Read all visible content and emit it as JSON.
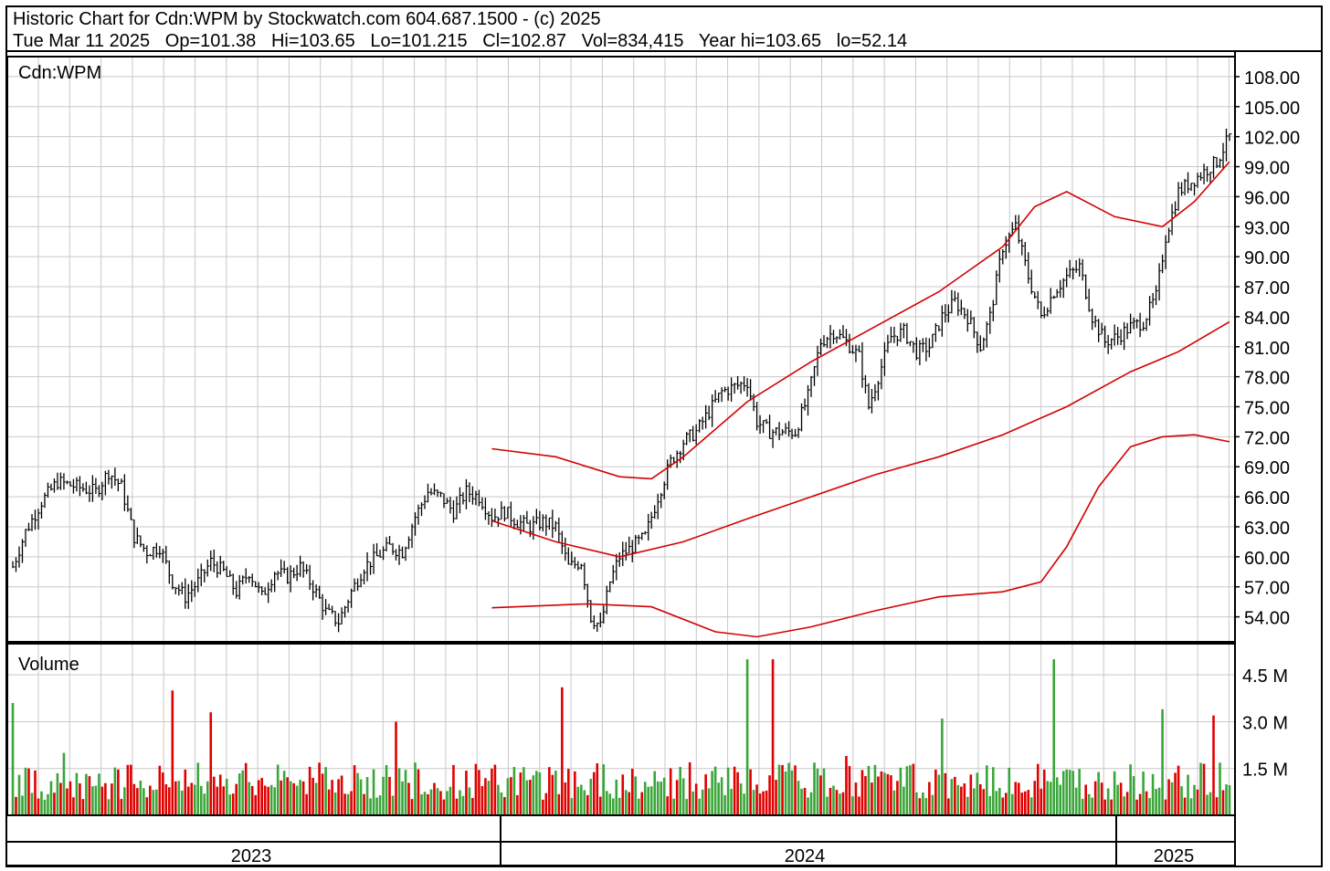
{
  "header": {
    "line1": "Historic Chart for Cdn:WPM by Stockwatch.com 604.687.1500 - (c) 2025",
    "line2": "Tue Mar 11 2025   Op=101.38   Hi=103.65   Lo=101.215   Cl=102.87   Vol=834,415   Year hi=103.65   lo=52.14"
  },
  "chart_data": {
    "type": "line",
    "symbol": "Cdn:WPM",
    "volume_label": "Volume",
    "price_ticks": [
      "108.00",
      "105.00",
      "102.00",
      "99.00",
      "96.00",
      "93.00",
      "90.00",
      "87.00",
      "84.00",
      "81.00",
      "78.00",
      "75.00",
      "72.00",
      "69.00",
      "66.00",
      "63.00",
      "60.00",
      "57.00",
      "54.00"
    ],
    "volume_ticks": [
      "4.5 M",
      "3.0 M",
      "1.5 M"
    ],
    "years": [
      "2023",
      "2024",
      "2025"
    ],
    "ylim": [
      51.5,
      110
    ],
    "volume_ylim": [
      0,
      5.5
    ],
    "colors": {
      "price_bar": "#000000",
      "moving_average": "#d40000",
      "volume_up": "#3aa63a",
      "volume_down": "#e00000",
      "grid": "#c8c8c8"
    },
    "close_series": [
      {
        "t": 0,
        "v": 59.0
      },
      {
        "t": 4,
        "v": 62.5
      },
      {
        "t": 9,
        "v": 65.5
      },
      {
        "t": 14,
        "v": 67.5
      },
      {
        "t": 20,
        "v": 67.0
      },
      {
        "t": 26,
        "v": 66.5
      },
      {
        "t": 30,
        "v": 68.5
      },
      {
        "t": 34,
        "v": 67.0
      },
      {
        "t": 38,
        "v": 62.0
      },
      {
        "t": 42,
        "v": 60.5
      },
      {
        "t": 46,
        "v": 61.0
      },
      {
        "t": 50,
        "v": 57.5
      },
      {
        "t": 54,
        "v": 56.0
      },
      {
        "t": 58,
        "v": 57.5
      },
      {
        "t": 62,
        "v": 59.5
      },
      {
        "t": 66,
        "v": 58.5
      },
      {
        "t": 70,
        "v": 56.5
      },
      {
        "t": 74,
        "v": 58.5
      },
      {
        "t": 78,
        "v": 56.0
      },
      {
        "t": 82,
        "v": 58.5
      },
      {
        "t": 86,
        "v": 58.0
      },
      {
        "t": 90,
        "v": 59.0
      },
      {
        "t": 94,
        "v": 57.0
      },
      {
        "t": 98,
        "v": 54.5
      },
      {
        "t": 102,
        "v": 53.5
      },
      {
        "t": 106,
        "v": 56.5
      },
      {
        "t": 110,
        "v": 59.0
      },
      {
        "t": 114,
        "v": 60.0
      },
      {
        "t": 118,
        "v": 61.0
      },
      {
        "t": 122,
        "v": 60.5
      },
      {
        "t": 126,
        "v": 64.0
      },
      {
        "t": 130,
        "v": 66.5
      },
      {
        "t": 134,
        "v": 66.0
      },
      {
        "t": 138,
        "v": 64.5
      },
      {
        "t": 142,
        "v": 66.5
      },
      {
        "t": 146,
        "v": 66.0
      },
      {
        "t": 150,
        "v": 64.0
      },
      {
        "t": 154,
        "v": 64.5
      },
      {
        "t": 158,
        "v": 63.5
      },
      {
        "t": 162,
        "v": 63.0
      },
      {
        "t": 166,
        "v": 63.5
      },
      {
        "t": 170,
        "v": 63.0
      },
      {
        "t": 174,
        "v": 59.0
      },
      {
        "t": 178,
        "v": 59.5
      },
      {
        "t": 181,
        "v": 54.0
      },
      {
        "t": 184,
        "v": 53.0
      },
      {
        "t": 187,
        "v": 57.5
      },
      {
        "t": 190,
        "v": 60.0
      },
      {
        "t": 194,
        "v": 61.0
      },
      {
        "t": 198,
        "v": 62.0
      },
      {
        "t": 202,
        "v": 66.0
      },
      {
        "t": 206,
        "v": 69.5
      },
      {
        "t": 210,
        "v": 71.5
      },
      {
        "t": 214,
        "v": 72.5
      },
      {
        "t": 218,
        "v": 74.5
      },
      {
        "t": 222,
        "v": 76.5
      },
      {
        "t": 226,
        "v": 77.0
      },
      {
        "t": 230,
        "v": 77.5
      },
      {
        "t": 233,
        "v": 73.5
      },
      {
        "t": 237,
        "v": 72.5
      },
      {
        "t": 241,
        "v": 72.5
      },
      {
        "t": 245,
        "v": 72.5
      },
      {
        "t": 249,
        "v": 76.0
      },
      {
        "t": 253,
        "v": 81.5
      },
      {
        "t": 257,
        "v": 82.5
      },
      {
        "t": 261,
        "v": 81.5
      },
      {
        "t": 265,
        "v": 80.0
      },
      {
        "t": 268,
        "v": 75.0
      },
      {
        "t": 271,
        "v": 78.0
      },
      {
        "t": 275,
        "v": 82.0
      },
      {
        "t": 279,
        "v": 82.5
      },
      {
        "t": 283,
        "v": 80.5
      },
      {
        "t": 287,
        "v": 81.0
      },
      {
        "t": 291,
        "v": 84.0
      },
      {
        "t": 295,
        "v": 85.5
      },
      {
        "t": 299,
        "v": 84.0
      },
      {
        "t": 303,
        "v": 81.0
      },
      {
        "t": 306,
        "v": 84.0
      },
      {
        "t": 310,
        "v": 91.0
      },
      {
        "t": 314,
        "v": 93.0
      },
      {
        "t": 318,
        "v": 88.0
      },
      {
        "t": 322,
        "v": 84.0
      },
      {
        "t": 326,
        "v": 86.5
      },
      {
        "t": 330,
        "v": 88.0
      },
      {
        "t": 334,
        "v": 89.0
      },
      {
        "t": 338,
        "v": 84.0
      },
      {
        "t": 342,
        "v": 81.5
      },
      {
        "t": 346,
        "v": 82.0
      },
      {
        "t": 350,
        "v": 83.0
      },
      {
        "t": 354,
        "v": 83.5
      },
      {
        "t": 358,
        "v": 86.0
      },
      {
        "t": 361,
        "v": 92.0
      },
      {
        "t": 365,
        "v": 96.5
      },
      {
        "t": 369,
        "v": 97.5
      },
      {
        "t": 373,
        "v": 98.5
      },
      {
        "t": 377,
        "v": 99.5
      },
      {
        "t": 381,
        "v": 102.0
      }
    ],
    "moving_averages": [
      {
        "name": "",
        "points": [
          {
            "t": 150,
            "v": 63.6
          },
          {
            "t": 170,
            "v": 61.5
          },
          {
            "t": 190,
            "v": 60.0
          },
          {
            "t": 210,
            "v": 61.5
          },
          {
            "t": 230,
            "v": 63.8
          },
          {
            "t": 250,
            "v": 66.0
          },
          {
            "t": 270,
            "v": 68.2
          },
          {
            "t": 290,
            "v": 70.0
          },
          {
            "t": 310,
            "v": 72.2
          },
          {
            "t": 330,
            "v": 75.0
          },
          {
            "t": 350,
            "v": 78.5
          },
          {
            "t": 365,
            "v": 80.5
          },
          {
            "t": 381,
            "v": 83.5
          }
        ]
      },
      {
        "name": "",
        "points": [
          {
            "t": 150,
            "v": 70.8
          },
          {
            "t": 170,
            "v": 70.0
          },
          {
            "t": 190,
            "v": 68.0
          },
          {
            "t": 200,
            "v": 67.8
          },
          {
            "t": 210,
            "v": 70.0
          },
          {
            "t": 230,
            "v": 75.5
          },
          {
            "t": 250,
            "v": 79.5
          },
          {
            "t": 270,
            "v": 83.0
          },
          {
            "t": 290,
            "v": 86.5
          },
          {
            "t": 310,
            "v": 91.0
          },
          {
            "t": 320,
            "v": 95.0
          },
          {
            "t": 330,
            "v": 96.5
          },
          {
            "t": 345,
            "v": 94.0
          },
          {
            "t": 360,
            "v": 93.0
          },
          {
            "t": 370,
            "v": 95.5
          },
          {
            "t": 381,
            "v": 99.5
          }
        ]
      },
      {
        "name": "",
        "points": [
          {
            "t": 150,
            "v": 54.9
          },
          {
            "t": 180,
            "v": 55.3
          },
          {
            "t": 200,
            "v": 55.0
          },
          {
            "t": 220,
            "v": 52.5
          },
          {
            "t": 233,
            "v": 52.0
          },
          {
            "t": 250,
            "v": 53.0
          },
          {
            "t": 270,
            "v": 54.6
          },
          {
            "t": 290,
            "v": 56.0
          },
          {
            "t": 310,
            "v": 56.5
          },
          {
            "t": 322,
            "v": 57.5
          },
          {
            "t": 330,
            "v": 61.0
          },
          {
            "t": 340,
            "v": 67.0
          },
          {
            "t": 350,
            "v": 71.0
          },
          {
            "t": 360,
            "v": 72.0
          },
          {
            "t": 370,
            "v": 72.2
          },
          {
            "t": 381,
            "v": 71.5
          }
        ]
      }
    ]
  }
}
